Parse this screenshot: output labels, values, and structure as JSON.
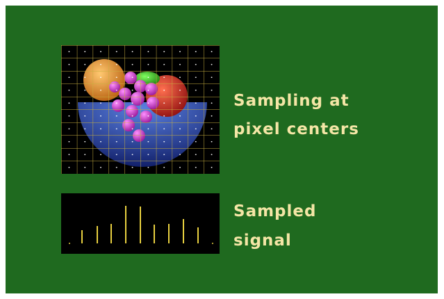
{
  "caption_top": {
    "lines": [
      "Sampling at",
      "pixel centers"
    ]
  },
  "caption_bottom": {
    "lines": [
      "Sampled",
      "signal"
    ]
  }
}
